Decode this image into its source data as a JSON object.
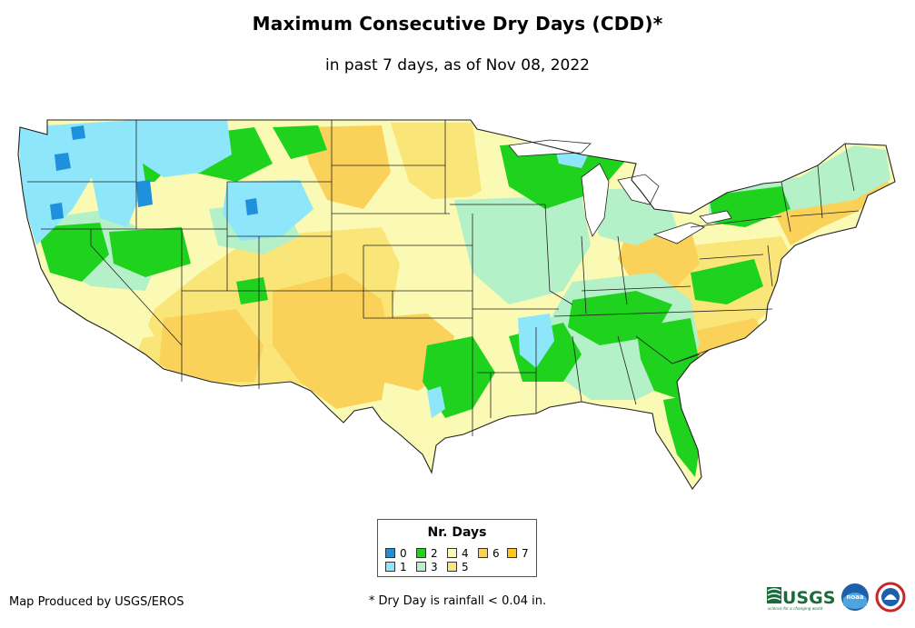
{
  "header": {
    "title": "Maximum Consecutive Dry Days (CDD)*",
    "subtitle": "in past 7 days, as of Nov 08, 2022"
  },
  "legend": {
    "title": "Nr. Days",
    "items": [
      {
        "label": "0",
        "color": "#1e90dc"
      },
      {
        "label": "1",
        "color": "#8ee6fa"
      },
      {
        "label": "2",
        "color": "#1ed21e"
      },
      {
        "label": "3",
        "color": "#b4f0c8"
      },
      {
        "label": "4",
        "color": "#fafab4"
      },
      {
        "label": "5",
        "color": "#fae678"
      },
      {
        "label": "6",
        "color": "#fad25a"
      },
      {
        "label": "7",
        "color": "#fac81e"
      }
    ]
  },
  "footer": {
    "credit": "Map Produced by USGS/EROS",
    "footnote": "* Dry Day is rainfall < 0.04 in.",
    "usgs_logo_text": "USGS",
    "usgs_tagline": "science for a changing world",
    "noaa_logo_text": "noaa"
  },
  "map": {
    "region": "CONUS",
    "state_border_color": "#222222"
  }
}
